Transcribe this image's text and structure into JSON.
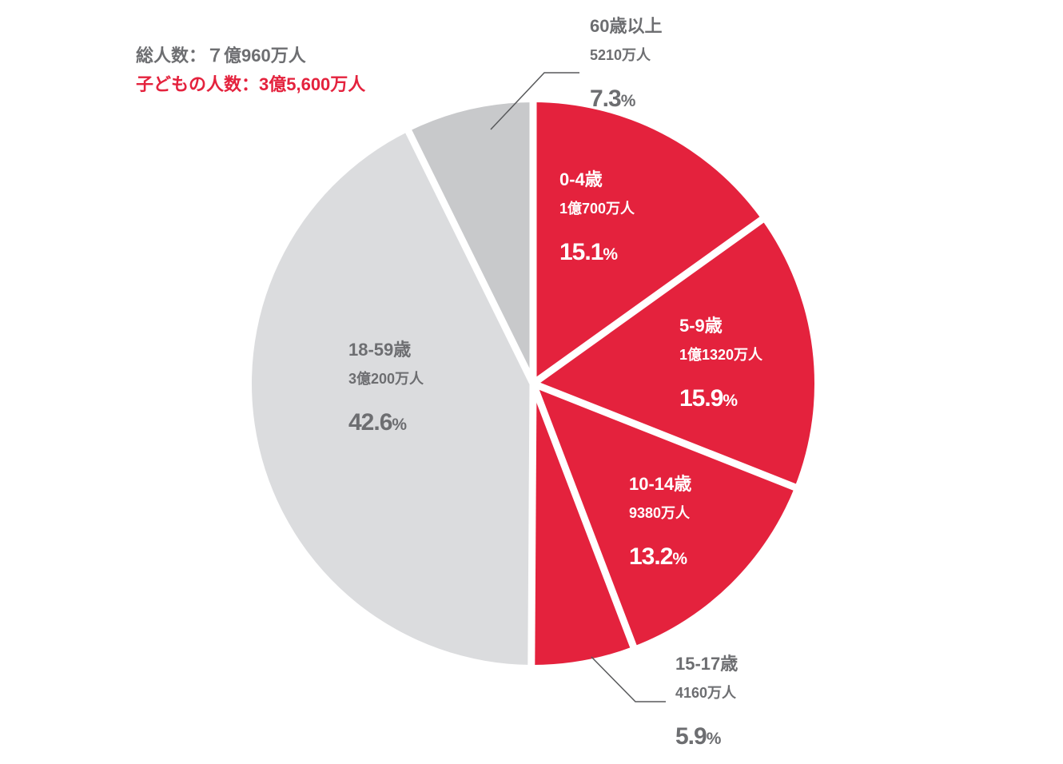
{
  "summary": {
    "total_text": "総人数：７億960万人",
    "children_text": "子どもの人数：3億5,600万人"
  },
  "colors": {
    "children": "#e4223d",
    "adult": "#dbdcde",
    "senior": "#c8c9cb",
    "text_white": "#ffffff",
    "text_gray": "#6d6e71",
    "text_red": "#e4223d",
    "leader": "#58595b",
    "separator": "#ffffff"
  },
  "chart_data": {
    "type": "pie",
    "start": "12 o'clock",
    "direction": "clockwise",
    "slices": [
      {
        "label": "0-4歳",
        "count": "1億700万人",
        "value": 15.1,
        "group": "children"
      },
      {
        "label": "5-9歳",
        "count": "1億1320万人",
        "value": 15.9,
        "group": "children"
      },
      {
        "label": "10-14歳",
        "count": "9380万人",
        "value": 13.2,
        "group": "children"
      },
      {
        "label": "15-17歳",
        "count": "4160万人",
        "value": 5.9,
        "group": "children"
      },
      {
        "label": "18-59歳",
        "count": "3億200万人",
        "value": 42.6,
        "group": "adult"
      },
      {
        "label": "60歳以上",
        "count": "5210万人",
        "value": 7.3,
        "group": "senior"
      }
    ]
  }
}
